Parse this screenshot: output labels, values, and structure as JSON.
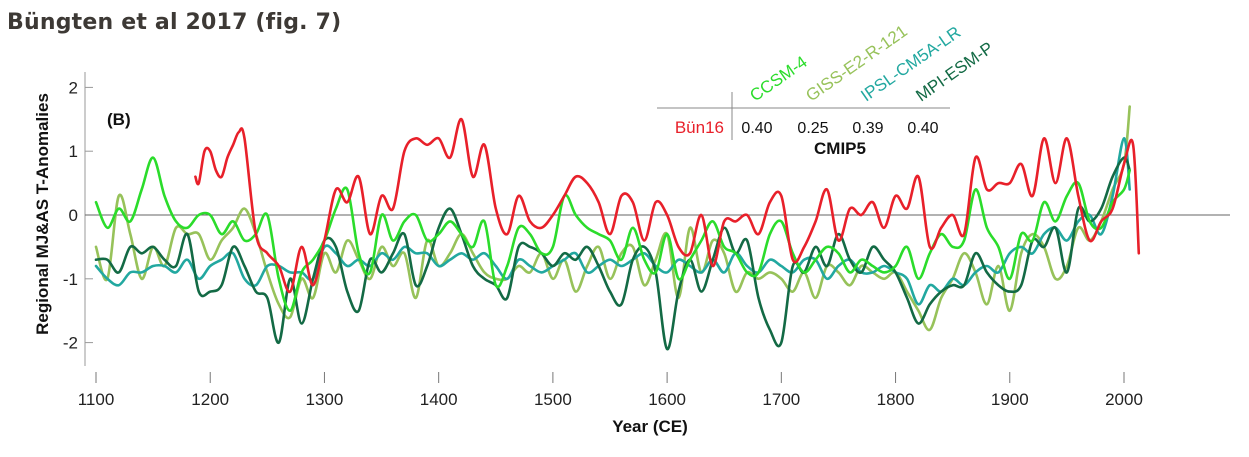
{
  "page": {
    "title": "Büngten et al 2017 (fig. 7)"
  },
  "chart_data": {
    "type": "line",
    "title": "Büngten et al 2017 (fig. 7)",
    "panel_label": "(B)",
    "xlabel": "Year (CE)",
    "ylabel": "Regional MJ&AS T-Anomalies",
    "xlim": [
      1100,
      2015
    ],
    "ylim": [
      -2.3,
      2.3
    ],
    "xticks": [
      1100,
      1200,
      1300,
      1400,
      1500,
      1600,
      1700,
      1800,
      1900,
      2000
    ],
    "yticks": [
      -2,
      -1,
      0,
      1,
      2
    ],
    "zero_line": true,
    "grid": false,
    "correlation_table": {
      "row_label": "Bün16",
      "row_color": "#e8202a",
      "group_label": "CMIP5",
      "columns": [
        {
          "model": "CCSM-4",
          "color": "#2bdc2b",
          "value": "0.40"
        },
        {
          "model": "GISS-E2-R-121",
          "color": "#97c25a",
          "value": "0.25"
        },
        {
          "model": "IPSL-CM5A-LR",
          "color": "#22a8a0",
          "value": "0.39"
        },
        {
          "model": "MPI-ESM-P",
          "color": "#136a45",
          "value": "0.40"
        }
      ]
    },
    "series": [
      {
        "name": "GISS-E2-R-121",
        "color": "#97c25a",
        "x": [
          1100,
          1110,
          1120,
          1130,
          1140,
          1150,
          1160,
          1170,
          1180,
          1190,
          1200,
          1210,
          1220,
          1230,
          1240,
          1250,
          1260,
          1270,
          1280,
          1290,
          1300,
          1310,
          1320,
          1330,
          1340,
          1350,
          1360,
          1370,
          1380,
          1390,
          1400,
          1410,
          1420,
          1430,
          1440,
          1450,
          1460,
          1470,
          1480,
          1490,
          1500,
          1510,
          1520,
          1530,
          1540,
          1550,
          1560,
          1570,
          1580,
          1590,
          1600,
          1610,
          1620,
          1630,
          1640,
          1650,
          1660,
          1670,
          1680,
          1690,
          1700,
          1710,
          1720,
          1730,
          1740,
          1750,
          1760,
          1770,
          1780,
          1790,
          1800,
          1810,
          1820,
          1830,
          1840,
          1850,
          1860,
          1870,
          1880,
          1890,
          1900,
          1910,
          1920,
          1930,
          1940,
          1950,
          1960,
          1970,
          1980,
          1990,
          2000,
          2005
        ],
        "values": [
          -0.5,
          -1.0,
          0.3,
          -0.3,
          -1.0,
          -0.5,
          -0.8,
          -0.2,
          -0.3,
          -0.3,
          -0.7,
          -0.4,
          -0.2,
          0.1,
          -0.3,
          -0.9,
          -1.4,
          -1.6,
          -1.0,
          -1.3,
          -0.6,
          -0.9,
          -0.4,
          -0.7,
          -1.0,
          -0.5,
          -0.8,
          -0.6,
          -1.3,
          -0.4,
          -0.8,
          -0.6,
          -0.3,
          -0.6,
          -0.9,
          -1.0,
          -1.0,
          -0.8,
          -0.9,
          -0.6,
          -1.0,
          -0.7,
          -1.2,
          -0.8,
          -0.5,
          -1.0,
          -0.6,
          -0.5,
          -1.1,
          -0.7,
          -0.3,
          -1.3,
          -0.2,
          -0.9,
          -0.4,
          -0.6,
          -1.2,
          -0.9,
          -1.0,
          -0.9,
          -1.0,
          -1.2,
          -0.9,
          -1.3,
          -0.8,
          -0.9,
          -1.1,
          -0.8,
          -0.9,
          -1.0,
          -0.9,
          -1.2,
          -1.5,
          -1.8,
          -1.3,
          -1.0,
          -0.6,
          -0.9,
          -1.4,
          -0.8,
          -1.5,
          -0.6,
          -0.3,
          -0.5,
          -1.0,
          -0.8,
          -0.2,
          -0.4,
          -0.1,
          0.4,
          0.8,
          1.7
        ]
      },
      {
        "name": "IPSL-CM5A-LR",
        "color": "#22a8a0",
        "x": [
          1100,
          1110,
          1120,
          1130,
          1140,
          1150,
          1160,
          1170,
          1180,
          1190,
          1200,
          1210,
          1220,
          1230,
          1240,
          1250,
          1260,
          1270,
          1280,
          1290,
          1300,
          1310,
          1320,
          1330,
          1340,
          1350,
          1360,
          1370,
          1380,
          1390,
          1400,
          1410,
          1420,
          1430,
          1440,
          1450,
          1460,
          1470,
          1480,
          1490,
          1500,
          1510,
          1520,
          1530,
          1540,
          1550,
          1560,
          1570,
          1580,
          1590,
          1600,
          1610,
          1620,
          1630,
          1640,
          1650,
          1660,
          1670,
          1680,
          1690,
          1700,
          1710,
          1720,
          1730,
          1740,
          1750,
          1760,
          1770,
          1780,
          1790,
          1800,
          1810,
          1820,
          1830,
          1840,
          1850,
          1860,
          1870,
          1880,
          1890,
          1900,
          1910,
          1920,
          1930,
          1940,
          1950,
          1960,
          1970,
          1980,
          1990,
          2000,
          2005
        ],
        "values": [
          -0.8,
          -1.0,
          -1.1,
          -0.9,
          -0.9,
          -0.8,
          -0.8,
          -0.9,
          -0.7,
          -1.0,
          -0.8,
          -0.7,
          -0.6,
          -1.0,
          -1.1,
          -0.8,
          -0.8,
          -0.9,
          -0.9,
          -1.0,
          -0.5,
          -0.6,
          -0.8,
          -0.7,
          -0.8,
          -0.6,
          -0.7,
          -0.5,
          -0.6,
          -0.6,
          -0.8,
          -0.7,
          -0.6,
          -0.7,
          -0.6,
          -0.8,
          -1.0,
          -0.7,
          -0.8,
          -0.9,
          -0.8,
          -0.7,
          -0.6,
          -0.9,
          -0.8,
          -0.7,
          -0.8,
          -0.7,
          -0.6,
          -0.8,
          -0.9,
          -0.7,
          -0.8,
          -0.9,
          -0.7,
          -0.9,
          -0.6,
          -0.8,
          -0.9,
          -0.7,
          -0.8,
          -0.9,
          -0.7,
          -0.7,
          -1.0,
          -0.8,
          -0.7,
          -0.9,
          -0.9,
          -0.8,
          -0.9,
          -1.0,
          -1.4,
          -1.1,
          -1.2,
          -1.0,
          -1.1,
          -0.9,
          -0.8,
          -0.9,
          -0.6,
          -0.5,
          -0.6,
          -0.3,
          -0.2,
          -0.4,
          -0.1,
          0.0,
          -0.3,
          0.3,
          1.2,
          0.4
        ]
      },
      {
        "name": "MPI-ESM-P",
        "color": "#136a45",
        "x": [
          1100,
          1110,
          1120,
          1130,
          1140,
          1150,
          1160,
          1170,
          1180,
          1190,
          1200,
          1210,
          1220,
          1230,
          1240,
          1250,
          1260,
          1270,
          1280,
          1290,
          1300,
          1310,
          1320,
          1330,
          1340,
          1350,
          1360,
          1370,
          1380,
          1390,
          1400,
          1410,
          1420,
          1430,
          1440,
          1450,
          1460,
          1470,
          1480,
          1490,
          1500,
          1510,
          1520,
          1530,
          1540,
          1550,
          1560,
          1570,
          1580,
          1590,
          1600,
          1610,
          1620,
          1630,
          1640,
          1650,
          1660,
          1670,
          1680,
          1690,
          1700,
          1710,
          1720,
          1730,
          1740,
          1750,
          1760,
          1770,
          1780,
          1790,
          1800,
          1810,
          1820,
          1830,
          1840,
          1850,
          1860,
          1870,
          1880,
          1890,
          1900,
          1910,
          1920,
          1930,
          1940,
          1950,
          1960,
          1970,
          1980,
          1990,
          2000,
          2005
        ],
        "values": [
          -0.7,
          -0.7,
          -0.9,
          -0.5,
          -0.6,
          -0.5,
          -0.7,
          -0.8,
          -0.3,
          -1.2,
          -1.2,
          -1.1,
          -0.5,
          -0.8,
          -1.2,
          -1.3,
          -2.0,
          -1.0,
          -1.7,
          -1.0,
          -0.4,
          -0.5,
          -1.2,
          -1.5,
          -0.7,
          -0.9,
          -0.6,
          -0.3,
          -1.1,
          -0.8,
          -0.2,
          0.1,
          -0.3,
          -0.8,
          -1.0,
          -1.1,
          -1.3,
          -0.5,
          -0.5,
          -0.6,
          -0.8,
          -0.6,
          -0.7,
          -0.5,
          -0.8,
          -1.2,
          -1.4,
          -0.7,
          -0.5,
          -0.9,
          -2.1,
          -1.2,
          -0.7,
          -1.2,
          -0.7,
          -0.2,
          -0.6,
          -0.4,
          -1.3,
          -1.8,
          -2.0,
          -0.8,
          -0.9,
          -0.5,
          -0.8,
          -0.3,
          -0.7,
          -0.9,
          -0.5,
          -0.7,
          -0.9,
          -1.3,
          -1.7,
          -1.4,
          -1.2,
          -1.1,
          -1.1,
          -0.6,
          -0.9,
          -1.1,
          -1.2,
          -1.1,
          -0.4,
          -0.5,
          -0.2,
          -0.9,
          0.1,
          -0.1,
          0.1,
          0.6,
          0.9,
          0.7
        ]
      },
      {
        "name": "CCSM-4",
        "color": "#2bdc2b",
        "x": [
          1100,
          1110,
          1120,
          1130,
          1140,
          1150,
          1160,
          1170,
          1180,
          1190,
          1200,
          1210,
          1220,
          1230,
          1240,
          1250,
          1260,
          1270,
          1280,
          1290,
          1300,
          1310,
          1320,
          1330,
          1340,
          1350,
          1360,
          1370,
          1380,
          1390,
          1400,
          1410,
          1420,
          1430,
          1440,
          1450,
          1460,
          1470,
          1480,
          1490,
          1500,
          1510,
          1520,
          1530,
          1540,
          1550,
          1560,
          1570,
          1580,
          1590,
          1600,
          1610,
          1620,
          1630,
          1640,
          1650,
          1660,
          1670,
          1680,
          1690,
          1700,
          1710,
          1720,
          1730,
          1740,
          1750,
          1760,
          1770,
          1780,
          1790,
          1800,
          1810,
          1820,
          1830,
          1840,
          1850,
          1860,
          1870,
          1880,
          1890,
          1900,
          1910,
          1920,
          1930,
          1940,
          1950,
          1960,
          1970,
          1980,
          1990,
          2000,
          2005
        ],
        "values": [
          0.2,
          -0.2,
          0.1,
          -0.1,
          0.4,
          0.9,
          0.3,
          -0.1,
          -0.2,
          0.0,
          0.0,
          -0.3,
          -0.1,
          -0.4,
          -0.3,
          0.0,
          -1.0,
          -1.5,
          -0.9,
          -0.7,
          -0.4,
          0.1,
          0.4,
          -0.6,
          -0.9,
          0.0,
          -0.4,
          -0.1,
          0.0,
          -0.4,
          -0.3,
          -0.1,
          -0.3,
          -0.5,
          -0.1,
          -1.1,
          -0.8,
          -0.2,
          -0.3,
          -0.6,
          -0.5,
          0.3,
          0.0,
          -0.2,
          -0.3,
          -0.4,
          -0.7,
          -0.2,
          -0.7,
          -0.9,
          -0.3,
          -1.0,
          -0.7,
          -0.4,
          -0.1,
          -0.5,
          -0.6,
          -0.9,
          -0.9,
          -0.3,
          -0.1,
          -0.6,
          -0.9,
          -0.7,
          -0.5,
          -0.6,
          -0.9,
          -0.7,
          -0.8,
          -0.9,
          -0.8,
          -0.5,
          -1.0,
          -0.6,
          -0.3,
          -0.5,
          -0.4,
          0.4,
          -0.2,
          -0.5,
          -1.0,
          -0.3,
          -0.4,
          0.2,
          -0.1,
          0.3,
          0.5,
          -0.1,
          -0.2,
          0.2,
          0.4,
          0.7
        ]
      },
      {
        "name": "Bün16",
        "color": "#e8202a",
        "x": [
          1187,
          1190,
          1195,
          1200,
          1205,
          1210,
          1215,
          1220,
          1225,
          1230,
          1240,
          1250,
          1260,
          1270,
          1280,
          1290,
          1300,
          1310,
          1320,
          1330,
          1340,
          1350,
          1360,
          1370,
          1380,
          1390,
          1400,
          1410,
          1420,
          1430,
          1440,
          1450,
          1460,
          1470,
          1480,
          1490,
          1500,
          1510,
          1520,
          1530,
          1540,
          1550,
          1560,
          1570,
          1580,
          1590,
          1600,
          1610,
          1620,
          1630,
          1640,
          1650,
          1660,
          1670,
          1680,
          1690,
          1700,
          1710,
          1720,
          1730,
          1740,
          1750,
          1760,
          1770,
          1780,
          1790,
          1800,
          1810,
          1820,
          1830,
          1840,
          1850,
          1860,
          1870,
          1880,
          1890,
          1900,
          1910,
          1920,
          1930,
          1940,
          1950,
          1960,
          1970,
          1980,
          1990,
          2000,
          2008,
          2013
        ],
        "values": [
          0.6,
          0.5,
          1.0,
          1.0,
          0.7,
          0.6,
          0.9,
          1.1,
          1.3,
          1.2,
          -0.3,
          -0.6,
          -0.8,
          -1.2,
          -0.5,
          -1.1,
          -0.4,
          0.4,
          0.2,
          0.6,
          -0.3,
          0.3,
          0.1,
          1.0,
          1.2,
          1.1,
          1.2,
          0.9,
          1.5,
          0.6,
          1.1,
          0.1,
          -0.3,
          0.3,
          -0.1,
          -0.2,
          0.0,
          0.3,
          0.6,
          0.5,
          0.2,
          -0.3,
          0.3,
          0.2,
          -0.4,
          0.2,
          0.0,
          -0.5,
          -0.6,
          0.0,
          -0.8,
          -0.1,
          -0.1,
          0.0,
          -0.3,
          0.2,
          0.3,
          -0.7,
          -0.5,
          -0.1,
          0.4,
          -0.4,
          0.1,
          0.0,
          0.2,
          -0.2,
          0.3,
          0.1,
          0.6,
          -0.5,
          -0.2,
          0.0,
          -0.3,
          0.9,
          0.4,
          0.5,
          0.5,
          0.8,
          0.3,
          1.2,
          0.5,
          1.2,
          0.3,
          -0.4,
          -0.1,
          0.1,
          0.8,
          1.1,
          -0.6
        ]
      }
    ]
  }
}
